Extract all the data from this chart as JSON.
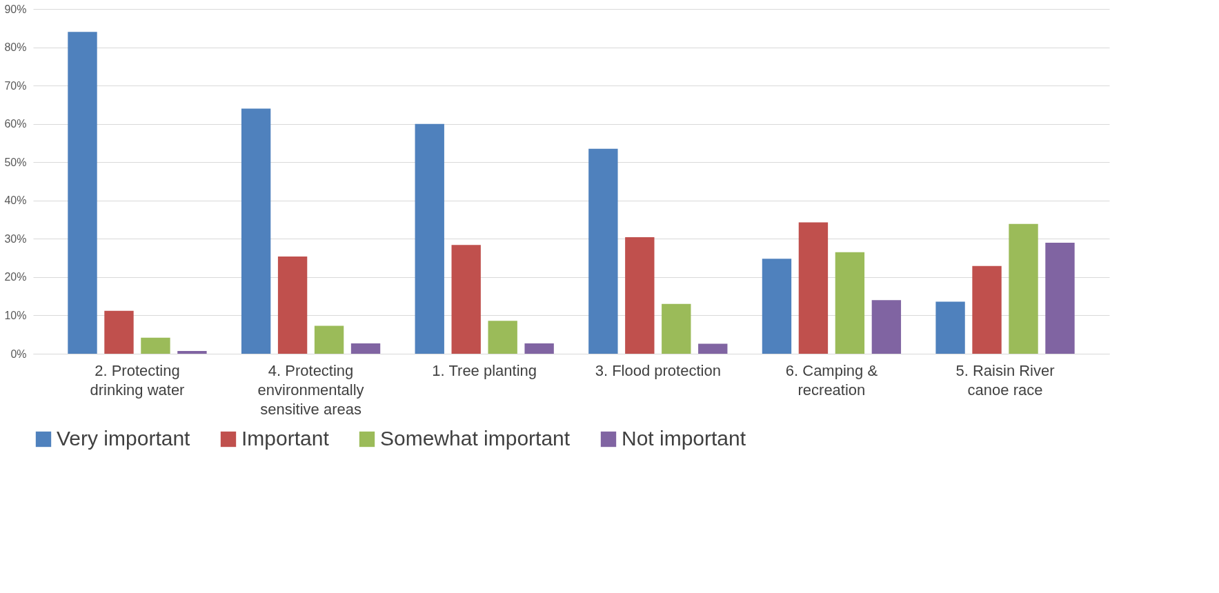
{
  "chart_data": {
    "type": "bar",
    "categories": [
      "2. Protecting drinking water",
      "4. Protecting environmentally sensitive areas",
      "1. Tree planting",
      "3. Flood protection",
      "6. Camping & recreation",
      "5. Raisin River canoe race"
    ],
    "series": [
      {
        "name": "Very important",
        "color": "#4f81bd",
        "values": [
          84,
          64,
          60,
          53.5,
          24.8,
          13.6
        ]
      },
      {
        "name": "Important",
        "color": "#c0504d",
        "values": [
          11.2,
          25.4,
          28.4,
          30.4,
          34.3,
          22.9
        ]
      },
      {
        "name": "Somewhat important",
        "color": "#9bbb59",
        "values": [
          4.2,
          7.3,
          8.6,
          13,
          26.5,
          33.9
        ]
      },
      {
        "name": "Not important",
        "color": "#8064a2",
        "values": [
          0.7,
          2.7,
          2.7,
          2.6,
          14,
          29
        ]
      }
    ],
    "ylim": [
      0,
      90
    ],
    "yticks": [
      {
        "value": 0,
        "label": "0%"
      },
      {
        "value": 10,
        "label": "10%"
      },
      {
        "value": 20,
        "label": "20%"
      },
      {
        "value": 30,
        "label": "30%"
      },
      {
        "value": 40,
        "label": "40%"
      },
      {
        "value": 50,
        "label": "50%"
      },
      {
        "value": 60,
        "label": "60%"
      },
      {
        "value": 70,
        "label": "70%"
      },
      {
        "value": 80,
        "label": "80%"
      },
      {
        "value": 90,
        "label": "90%"
      }
    ],
    "grid": "y",
    "legend": "bottom"
  }
}
